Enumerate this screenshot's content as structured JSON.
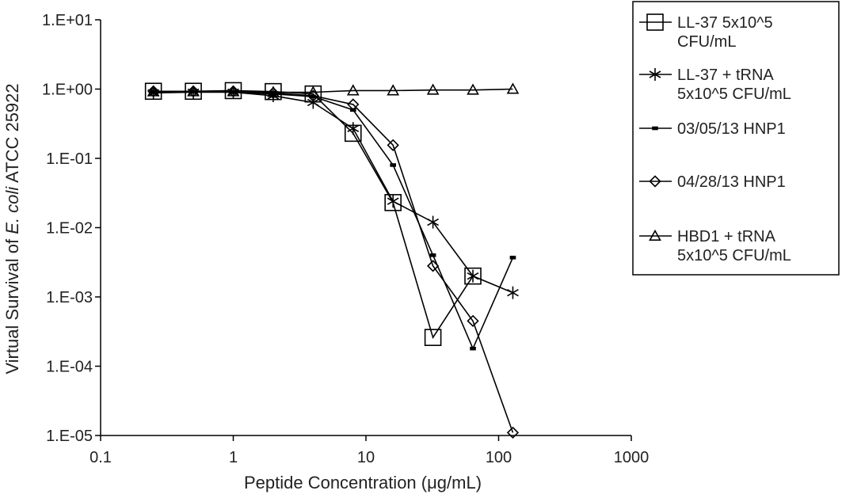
{
  "chart_data": {
    "type": "line",
    "xlabel": "Peptide Concentration (μg/mL)",
    "ylabel_parts": [
      "Virtual Survival of ",
      "E. coli",
      " ATCC 25922"
    ],
    "xscale": "log",
    "yscale": "log",
    "xlim": [
      0.1,
      1000
    ],
    "ylim": [
      1e-05,
      10
    ],
    "x_ticks": [
      {
        "value": 0.1,
        "label": "0.1"
      },
      {
        "value": 1,
        "label": "1"
      },
      {
        "value": 10,
        "label": "10"
      },
      {
        "value": 100,
        "label": "100"
      },
      {
        "value": 1000,
        "label": "1000"
      }
    ],
    "y_ticks": [
      {
        "value": 10,
        "label": "1.E+01"
      },
      {
        "value": 1,
        "label": "1.E+00"
      },
      {
        "value": 0.1,
        "label": "1.E-01"
      },
      {
        "value": 0.01,
        "label": "1.E-02"
      },
      {
        "value": 0.001,
        "label": "1.E-03"
      },
      {
        "value": 0.0001,
        "label": "1.E-04"
      },
      {
        "value": 1e-05,
        "label": "1.E-05"
      }
    ],
    "grid": false,
    "legend_position": "right",
    "series": [
      {
        "name_lines": [
          "LL-37 5x10^5",
          "CFU/mL"
        ],
        "marker": "square",
        "x": [
          0.25,
          0.5,
          1,
          2,
          4,
          8,
          16,
          32,
          64
        ],
        "y": [
          0.93,
          0.93,
          0.95,
          0.92,
          0.85,
          0.23,
          0.023,
          0.00026,
          0.002
        ]
      },
      {
        "name_lines": [
          "LL-37 + tRNA",
          "5x10^5 CFU/mL"
        ],
        "marker": "asterisk",
        "x": [
          0.25,
          0.5,
          1,
          2,
          4,
          8,
          16,
          32,
          64,
          128
        ],
        "y": [
          0.88,
          0.9,
          0.9,
          0.8,
          0.64,
          0.27,
          0.024,
          0.012,
          0.002,
          0.00115
        ]
      },
      {
        "name_lines": [
          "03/05/13 HNP1"
        ],
        "marker": "dash",
        "x": [
          0.25,
          0.5,
          1,
          2,
          4,
          8,
          16,
          32,
          64,
          128
        ],
        "y": [
          0.92,
          0.92,
          0.9,
          0.85,
          0.78,
          0.5,
          0.08,
          0.004,
          0.00018,
          0.0037
        ]
      },
      {
        "name_lines": [
          "04/28/13 HNP1"
        ],
        "marker": "diamond",
        "x": [
          0.25,
          0.5,
          1,
          2,
          4,
          8,
          16,
          32,
          64,
          128
        ],
        "y": [
          0.93,
          0.93,
          0.93,
          0.88,
          0.8,
          0.6,
          0.155,
          0.0028,
          0.00045,
          1.1e-05
        ]
      },
      {
        "name_lines": [
          "HBD1 + tRNA",
          "5x10^5 CFU/mL"
        ],
        "marker": "triangle",
        "x": [
          0.25,
          0.5,
          1,
          2,
          4,
          8,
          16,
          32,
          64,
          128
        ],
        "y": [
          0.92,
          0.92,
          0.92,
          0.9,
          0.9,
          0.95,
          0.95,
          0.97,
          0.97,
          1.0
        ]
      }
    ]
  }
}
